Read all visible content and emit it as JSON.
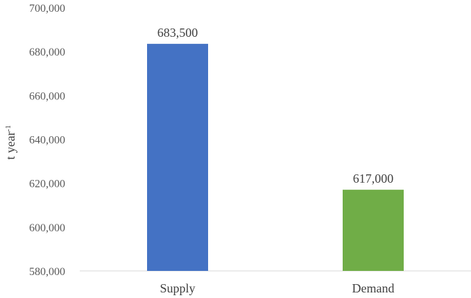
{
  "chart_data": {
    "type": "bar",
    "categories": [
      "Supply",
      "Demand"
    ],
    "values": [
      683500,
      617000
    ],
    "value_labels": [
      "683,500",
      "617,000"
    ],
    "colors": [
      "#4472C4",
      "#70AD47"
    ],
    "title": "",
    "xlabel": "",
    "ylabel": "t year",
    "ylabel_superscript": "-1",
    "ylim": [
      580000,
      700000
    ],
    "yticks": [
      580000,
      600000,
      620000,
      640000,
      660000,
      680000,
      700000
    ],
    "ytick_labels": [
      "580,000",
      "600,000",
      "620,000",
      "640,000",
      "660,000",
      "680,000",
      "700,000"
    ],
    "grid": false,
    "legend": "none"
  }
}
